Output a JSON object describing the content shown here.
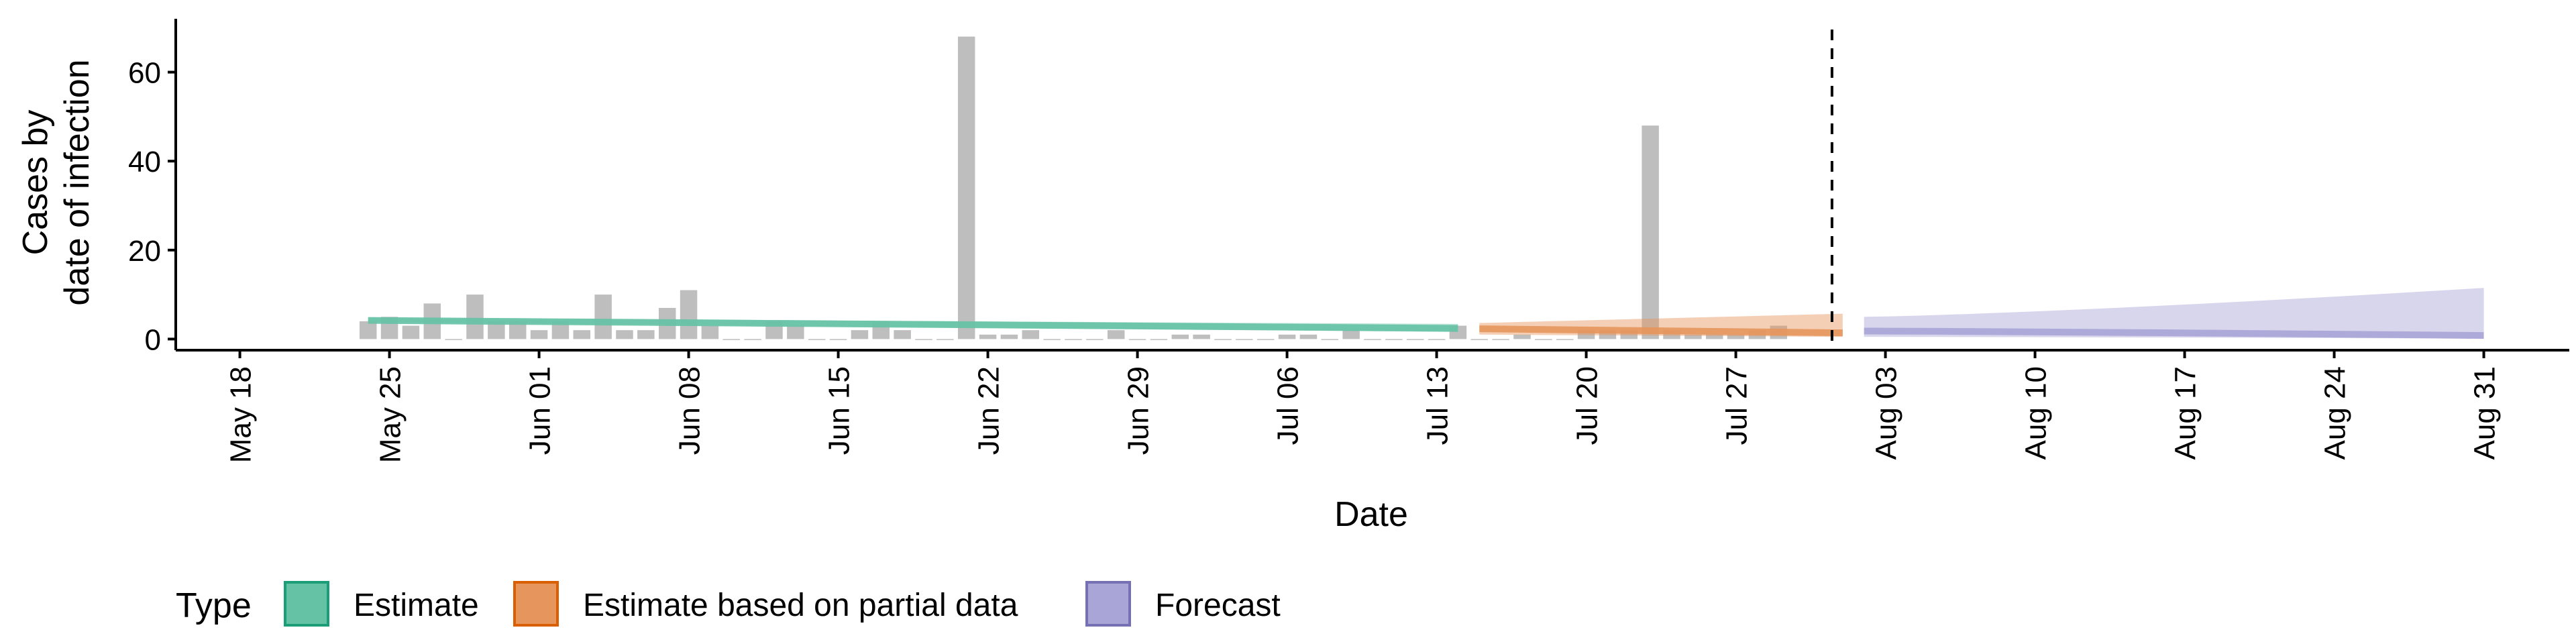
{
  "chart_data": {
    "type": "bar",
    "ylabel": [
      "Cases by",
      "date of infection"
    ],
    "xlabel": "Date",
    "yticks": [
      0,
      20,
      40,
      60
    ],
    "ylim": [
      -2.5,
      72
    ],
    "xlim": [
      "2020-05-15",
      "2020-09-04"
    ],
    "xticks": [
      {
        "date": "2020-05-18",
        "label": "May 18"
      },
      {
        "date": "2020-05-25",
        "label": "May 25"
      },
      {
        "date": "2020-06-01",
        "label": "Jun 01"
      },
      {
        "date": "2020-06-08",
        "label": "Jun 08"
      },
      {
        "date": "2020-06-15",
        "label": "Jun 15"
      },
      {
        "date": "2020-06-22",
        "label": "Jun 22"
      },
      {
        "date": "2020-06-29",
        "label": "Jun 29"
      },
      {
        "date": "2020-07-06",
        "label": "Jul 06"
      },
      {
        "date": "2020-07-13",
        "label": "Jul 13"
      },
      {
        "date": "2020-07-20",
        "label": "Jul 20"
      },
      {
        "date": "2020-07-27",
        "label": "Jul 27"
      },
      {
        "date": "2020-08-03",
        "label": "Aug 03"
      },
      {
        "date": "2020-08-10",
        "label": "Aug 10"
      },
      {
        "date": "2020-08-17",
        "label": "Aug 17"
      },
      {
        "date": "2020-08-24",
        "label": "Aug 24"
      },
      {
        "date": "2020-08-31",
        "label": "Aug 31"
      }
    ],
    "observed_cases": {
      "start_date": "2020-05-24",
      "values": [
        4,
        5,
        3,
        8,
        0,
        10,
        4,
        4,
        2,
        4,
        2,
        10,
        2,
        2,
        7,
        11,
        3,
        0,
        0,
        4,
        3,
        0,
        0,
        2,
        4,
        2,
        0,
        0,
        68,
        1,
        1,
        2,
        0,
        0,
        0,
        2,
        0,
        0,
        1,
        1,
        0,
        0,
        0,
        1,
        1,
        0,
        2,
        0,
        0,
        0,
        0,
        3,
        0,
        0,
        1,
        0,
        0,
        2,
        2,
        2,
        48,
        2,
        1,
        1,
        1,
        2,
        3
      ]
    },
    "forecast_date": "2020-08-01",
    "series": [
      {
        "name": "Estimate",
        "color": "#1b9e77",
        "fill": "#66c2a5",
        "start": "2020-05-24",
        "end": "2020-07-14",
        "median": [
          4.2,
          2.4
        ],
        "lower": [
          3.8,
          1.6
        ],
        "upper": [
          4.7,
          3.4
        ]
      },
      {
        "name": "Estimate based on partial data",
        "color": "#d95f02",
        "fill": "#e6955c",
        "start": "2020-07-15",
        "end": "2020-08-01",
        "median": [
          2.3,
          1.4
        ],
        "lower": [
          1.0,
          0.5
        ],
        "upper": [
          3.6,
          5.7
        ]
      },
      {
        "name": "Forecast",
        "color": "#7570b3",
        "fill": "#a9a5d6",
        "start": "2020-08-02",
        "end": "2020-08-31",
        "median": [
          1.8,
          0.8
        ],
        "lower": [
          0.5,
          0.1
        ],
        "upper": [
          5.0,
          11.5
        ]
      }
    ],
    "legend": {
      "title": "Type",
      "position": "bottom",
      "items": [
        {
          "label": "Estimate",
          "fill": "#66c2a5",
          "border": "#1b9e77"
        },
        {
          "label": "Estimate based on partial data",
          "fill": "#e6955c",
          "border": "#d95f02"
        },
        {
          "label": "Forecast",
          "fill": "#a9a5d6",
          "border": "#7570b3"
        }
      ]
    },
    "grid": false,
    "colors": {
      "observed": "#bebebe",
      "axis": "#000000"
    }
  }
}
